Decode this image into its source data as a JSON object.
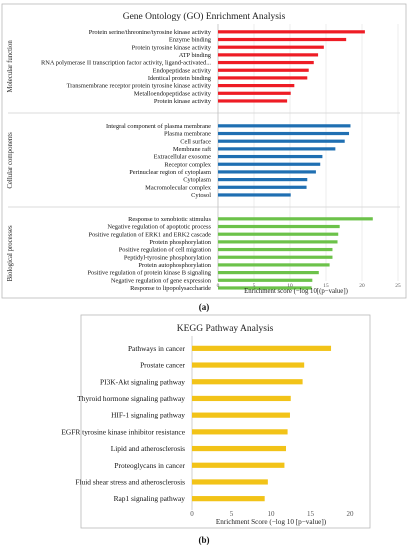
{
  "chart_data": [
    {
      "type": "bar",
      "orientation": "horizontal",
      "title": "Gene Ontology (GO) Enrichment Analysis",
      "xlabel": "Enrichment score (−log 10[(p−value])",
      "xlim": [
        0,
        25
      ],
      "xticks": [
        "0",
        "5",
        "10",
        "15",
        "20",
        "25"
      ],
      "panel_label": "(a)",
      "grid": true,
      "groups": [
        {
          "name": "Molecular function",
          "color": "#ee1c25",
          "categories": [
            "Protein serine/threonine/tyrosine kinase activity",
            "Enzyme binding",
            "Protein tyrosine kinase activity",
            "ATP binding",
            "RNA polymerase II transcription factor activity, ligand-activated...",
            "Endopeptidase activity",
            "Identical protein binding",
            "Transmembrane receptor protein tyrosine kinase activity",
            "Metalloendopeptidase activity",
            "Protein kinase activity"
          ],
          "values": [
            20.4,
            17.8,
            14.7,
            13.9,
            13.3,
            12.6,
            12.4,
            10.6,
            10.1,
            9.6
          ]
        },
        {
          "name": "Cellular components",
          "color": "#1f6fb2",
          "categories": [
            "Integral component of plasma membrane",
            "Plasma membrane",
            "Cell surface",
            "Membrane raft",
            "Extracellular exosome",
            "Receptor complex",
            "Perinuclear region of cytoplasm",
            "Cytoplasm",
            "Macromolecular complex",
            "Cytosol"
          ],
          "values": [
            18.4,
            18.2,
            17.6,
            16.3,
            14.5,
            14.2,
            13.6,
            12.4,
            12.3,
            10.1
          ]
        },
        {
          "name": "Biological processes",
          "color": "#6cc24a",
          "categories": [
            "Response to xenobiotic stimulus",
            "Negative regulation of apoptotic process",
            "Positive regulation of ERK1 and ERK2 cascade",
            "Protein phosphorylation",
            "Positive regulation of cell migration",
            "Peptidyl-tyrosine phosphorylation",
            "Protein autophosphorylation",
            "Positive regulation of protein kinase B signaling",
            "Negative regulation of gene expression",
            "Response to lipopolysaccharide"
          ],
          "values": [
            21.5,
            16.9,
            16.7,
            16.6,
            15.9,
            15.9,
            15.5,
            14.0,
            13.1,
            13.0
          ]
        }
      ]
    },
    {
      "type": "bar",
      "orientation": "horizontal",
      "title": "KEGG Pathway Analysis",
      "xlabel": "Enrichment Score (−log 10 [p−value])",
      "xlim": [
        0,
        20
      ],
      "xticks": [
        "0",
        "5",
        "10",
        "15",
        "20"
      ],
      "panel_label": "(b)",
      "grid": false,
      "color": "#f2c318",
      "categories": [
        "Pathways in cancer",
        "Prostate cancer",
        "PI3K-Akt signaling pathway",
        "Thyroid hormone signaling pathway",
        "HIF-1 signaling pathway",
        "EGFR tyrosine kinase inhibitor resistance",
        "Lipid and atherosclerosis",
        "Proteoglycans in cancer",
        "Fluid shear stress and atherosclerosis",
        "Rap1 signaling pathway"
      ],
      "values": [
        17.6,
        14.2,
        14.0,
        12.5,
        12.4,
        12.1,
        11.9,
        11.7,
        9.6,
        9.2
      ]
    }
  ]
}
